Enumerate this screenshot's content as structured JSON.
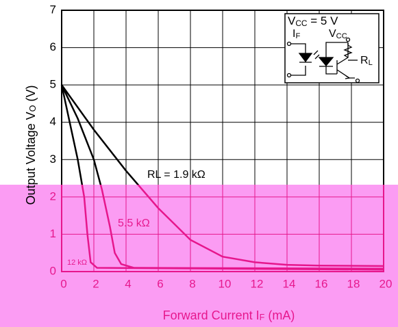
{
  "chart_data": {
    "type": "line",
    "xlabel": [
      "Forward Current  I",
      "F",
      " (mA)"
    ],
    "ylabel": [
      "Output Voltage  V",
      "O",
      " (V)"
    ],
    "xlim": [
      0,
      20
    ],
    "xticks": [
      0,
      2,
      4,
      6,
      8,
      10,
      12,
      14,
      16,
      18,
      20
    ],
    "ylim": [
      0,
      7
    ],
    "yticks": [
      0,
      1,
      2,
      3,
      4,
      5,
      6,
      7
    ],
    "grid": true,
    "series": [
      {
        "name": "RL = 1.9 kΩ",
        "color": "#000000",
        "x": [
          0,
          2,
          4,
          6,
          8,
          10,
          12,
          14,
          16,
          20
        ],
        "values": [
          5,
          3.8,
          2.7,
          1.7,
          0.85,
          0.4,
          0.25,
          0.18,
          0.16,
          0.15
        ]
      },
      {
        "name": "5.5 kΩ",
        "color": "#000000",
        "x": [
          0,
          1,
          2,
          2.5,
          3,
          3.3,
          3.7,
          4.5,
          20
        ],
        "values": [
          5,
          4.1,
          3,
          2.2,
          1.2,
          0.5,
          0.2,
          0.1,
          0.08
        ]
      },
      {
        "name": "12 kΩ",
        "color": "#000000",
        "x": [
          0,
          0.5,
          1,
          1.4,
          1.6,
          1.8,
          2.2,
          20
        ],
        "values": [
          5,
          4,
          3,
          2,
          1,
          0.25,
          0.1,
          0.05
        ]
      }
    ],
    "inset": {
      "supply": "VCC = 5 V",
      "input": "IF",
      "collector": "VCC",
      "load": "RL"
    }
  }
}
